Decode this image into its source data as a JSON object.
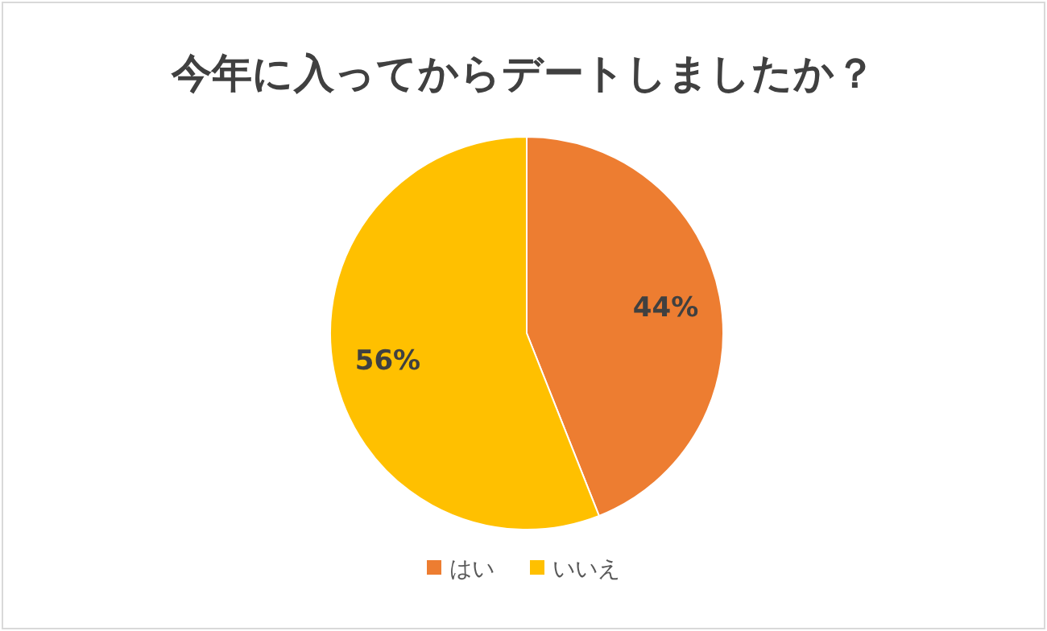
{
  "chart_data": {
    "type": "pie",
    "title": "今年に入ってからデートしましたか？",
    "categories": [
      "はい",
      "いいえ"
    ],
    "values": [
      44,
      56
    ],
    "colors": [
      "#ed7d31",
      "#ffc000"
    ],
    "value_labels": [
      "44%",
      "56%"
    ],
    "legend": "bottom"
  }
}
